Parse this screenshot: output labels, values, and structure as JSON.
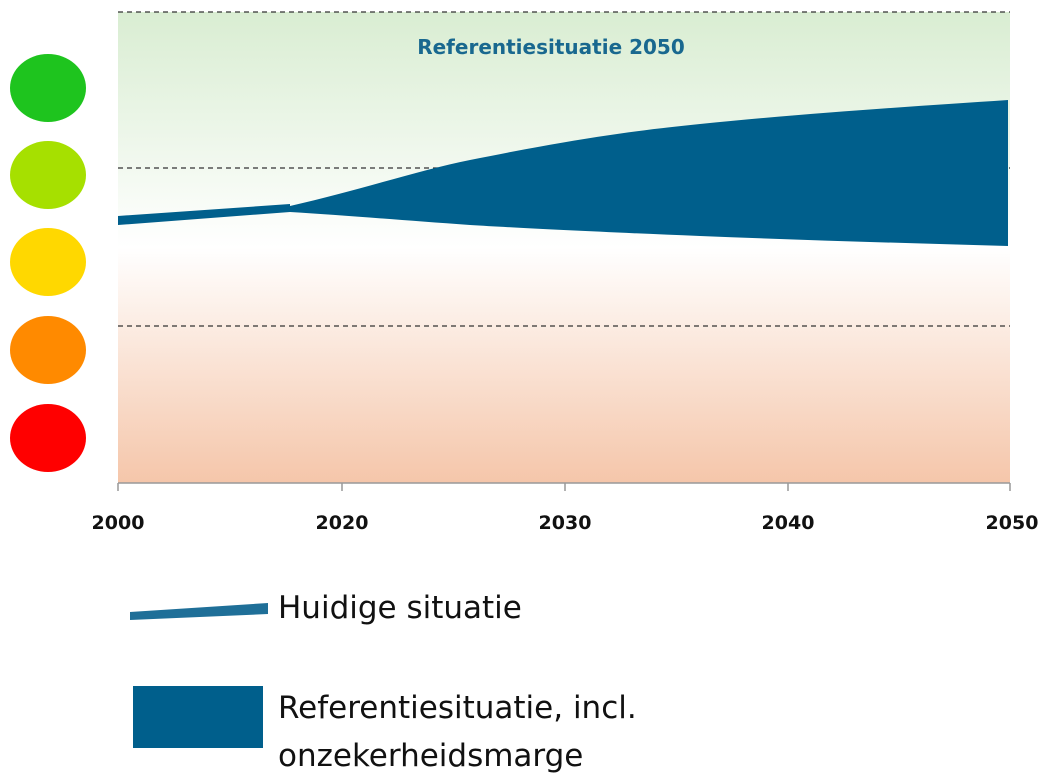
{
  "header": {
    "title": "Referentiesituatie 2050"
  },
  "x_axis": {
    "labels": [
      "2000",
      "2020",
      "2030",
      "2040",
      "2050"
    ]
  },
  "legend": {
    "items": [
      {
        "label": [
          "Huidige situatie"
        ]
      },
      {
        "label": [
          "Referentiesituatie, incl.",
          "onzekerheidsmarge"
        ]
      }
    ]
  }
}
